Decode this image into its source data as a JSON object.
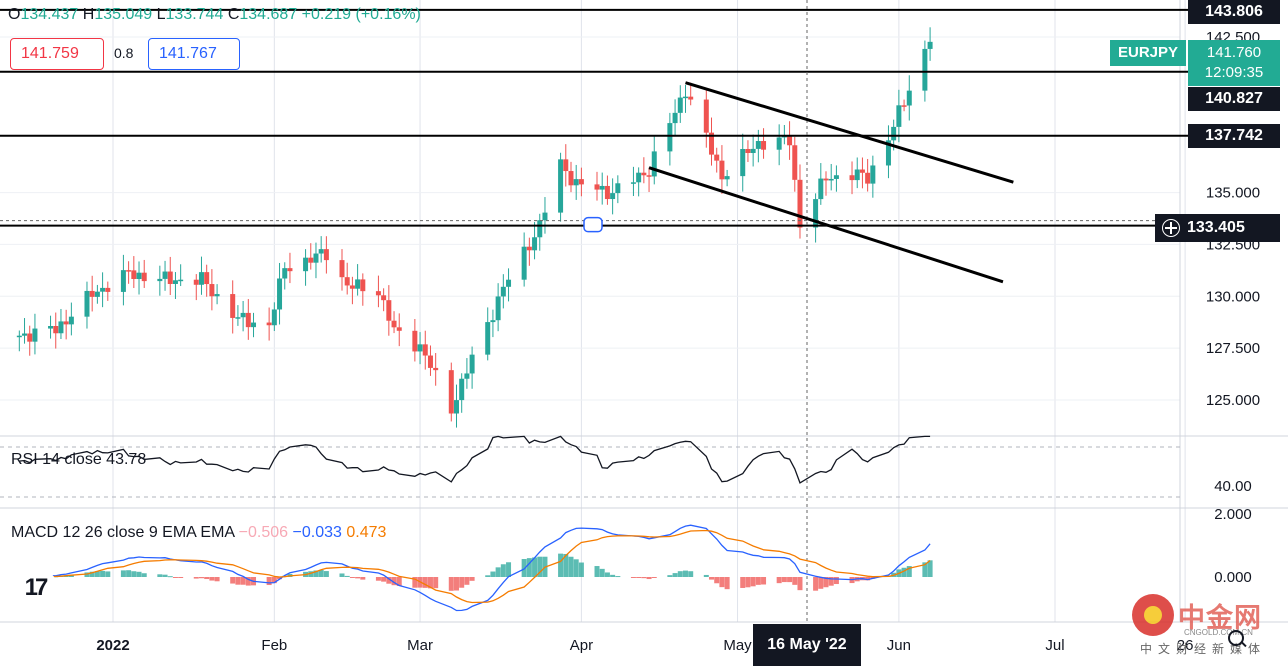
{
  "header": {
    "ohlc": [
      {
        "key": "O",
        "value": "134.437"
      },
      {
        "key": "H",
        "value": "135.049"
      },
      {
        "key": "L",
        "value": "133.744"
      },
      {
        "key": "C",
        "value": "134.687"
      }
    ],
    "change": "+0.219 (+0.16%)",
    "bid": "141.759",
    "spread": "0.8",
    "ask": "141.767"
  },
  "price_scale": {
    "symbol": "EURJPY",
    "last_price": "141.760",
    "countdown": "12:09:35",
    "levels": [
      "143.806",
      "140.827",
      "137.742"
    ],
    "crosshair_price": "133.405",
    "ticks": [
      "142.500",
      "135.000",
      "132.500",
      "130.000",
      "127.500",
      "125.000"
    ],
    "tick_values": [
      142.5,
      135,
      132.5,
      130,
      127.5,
      125
    ]
  },
  "rsi": {
    "label": "RSI 14 close",
    "value": "43.78",
    "tick": "40.00"
  },
  "macd": {
    "label": "MACD 12 26 close 9 EMA EMA",
    "hist": "−0.506",
    "macd": "−0.033",
    "signal": "0.473",
    "ticks": [
      "2.000",
      "0.000"
    ]
  },
  "time_axis": {
    "labels": [
      "2022",
      "Feb",
      "Mar",
      "Apr",
      "May",
      "Jun",
      "Jul",
      "26"
    ],
    "crosshair_date": "16 May '22"
  },
  "watermark": {
    "name": "中金网",
    "url": "CNGOLD.COM.CN",
    "sub": "中文财经新媒体"
  },
  "colors": {
    "up": "#26a69a",
    "down": "#ef5350",
    "rsi": "#131722",
    "macd": "#2962ff",
    "signal": "#f57c00",
    "level_lines": "#000000"
  },
  "chart_data": {
    "type": "candlestick",
    "symbol": "EURJPY",
    "interval": "1D",
    "x_range": [
      "2021-12-13",
      "2022-07-26"
    ],
    "ylim": [
      123.5,
      144.5
    ],
    "grid": true,
    "horizontal_levels": [
      143.806,
      140.827,
      137.742,
      133.405
    ],
    "trendlines": [
      {
        "from": [
          "2022-04-21",
          140.3
        ],
        "to": [
          "2022-06-23",
          135.5
        ]
      },
      {
        "from": [
          "2022-04-14",
          136.2
        ],
        "to": [
          "2022-06-21",
          130.7
        ]
      }
    ],
    "anchor_closes": [
      [
        "2021-12-14",
        128.1
      ],
      [
        "2021-12-21",
        128.4
      ],
      [
        "2021-12-28",
        130.1
      ],
      [
        "2022-01-04",
        131.1
      ],
      [
        "2022-01-11",
        130.8
      ],
      [
        "2022-01-18",
        130.8
      ],
      [
        "2022-01-25",
        128.9
      ],
      [
        "2022-01-31",
        128.6
      ],
      [
        "2022-02-03",
        131.4
      ],
      [
        "2022-02-08",
        131.8
      ],
      [
        "2022-02-11",
        132.1
      ],
      [
        "2022-02-15",
        130.5
      ],
      [
        "2022-02-21",
        130.3
      ],
      [
        "2022-02-24",
        128.3
      ],
      [
        "2022-03-01",
        127.6
      ],
      [
        "2022-03-07",
        124.6
      ],
      [
        "2022-03-10",
        126.4
      ],
      [
        "2022-03-17",
        130.4
      ],
      [
        "2022-03-24",
        133.4
      ],
      [
        "2022-03-28",
        136.4
      ],
      [
        "2022-03-31",
        135.4
      ],
      [
        "2022-04-07",
        135.0
      ],
      [
        "2022-04-14",
        136.1
      ],
      [
        "2022-04-21",
        140.0
      ],
      [
        "2022-04-28",
        135.8
      ],
      [
        "2022-05-05",
        137.4
      ],
      [
        "2022-05-11",
        137.5
      ],
      [
        "2022-05-13",
        133.5
      ],
      [
        "2022-05-18",
        135.7
      ],
      [
        "2022-05-23",
        135.9
      ],
      [
        "2022-05-26",
        135.7
      ],
      [
        "2022-05-31",
        138.2
      ],
      [
        "2022-06-03",
        140.0
      ],
      [
        "2022-06-07",
        142.5
      ]
    ],
    "rsi": {
      "name": "RSI 14 close",
      "last": 43.78,
      "levels": [
        70,
        30
      ]
    },
    "macd": {
      "name": "MACD 12 26 close 9 EMA EMA",
      "macd": -0.033,
      "signal": 0.473,
      "histogram": -0.506
    }
  }
}
